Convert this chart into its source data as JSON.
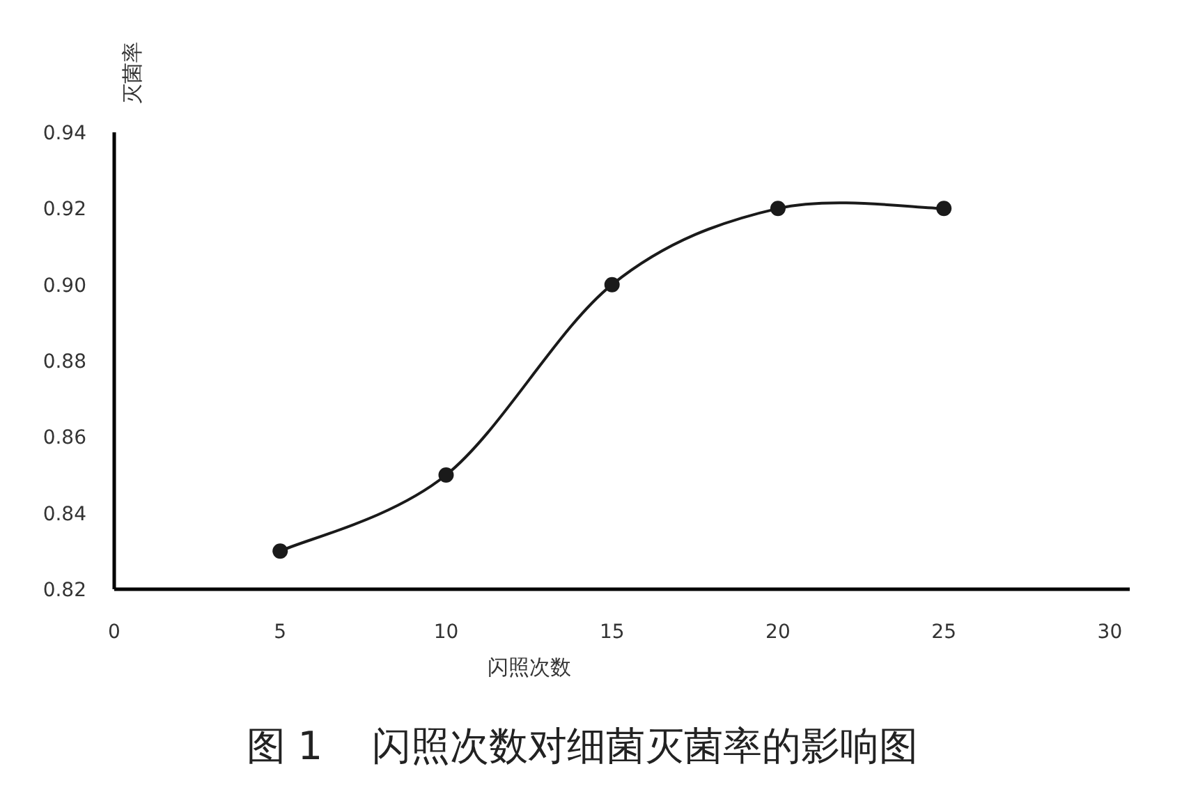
{
  "chart_data": {
    "type": "line",
    "title": "图 1    闪照次数对细菌灭菌率的影响图",
    "xlabel": "闪照次数",
    "ylabel": "灭菌率",
    "x": [
      5,
      10,
      15,
      20,
      25
    ],
    "series": [
      {
        "color": "#1a1a1a",
        "values": [
          0.83,
          0.85,
          0.9,
          0.92,
          0.92
        ]
      }
    ],
    "xlim": [
      0,
      30.6
    ],
    "xticks": [
      0,
      5,
      10,
      15,
      20,
      25,
      30
    ],
    "ylim": [
      0.82,
      0.94
    ],
    "yticks": [
      {
        "value": 0.82,
        "label": "0.82"
      },
      {
        "value": 0.84,
        "label": "0.84"
      },
      {
        "value": 0.86,
        "label": "0.86"
      },
      {
        "value": 0.88,
        "label": "0.88"
      },
      {
        "value": 0.9,
        "label": "0.90"
      },
      {
        "value": 0.92,
        "label": "0.92"
      },
      {
        "value": 0.94,
        "label": "0.94"
      }
    ],
    "marker": "circle",
    "line_style": "solid",
    "grid": false
  }
}
